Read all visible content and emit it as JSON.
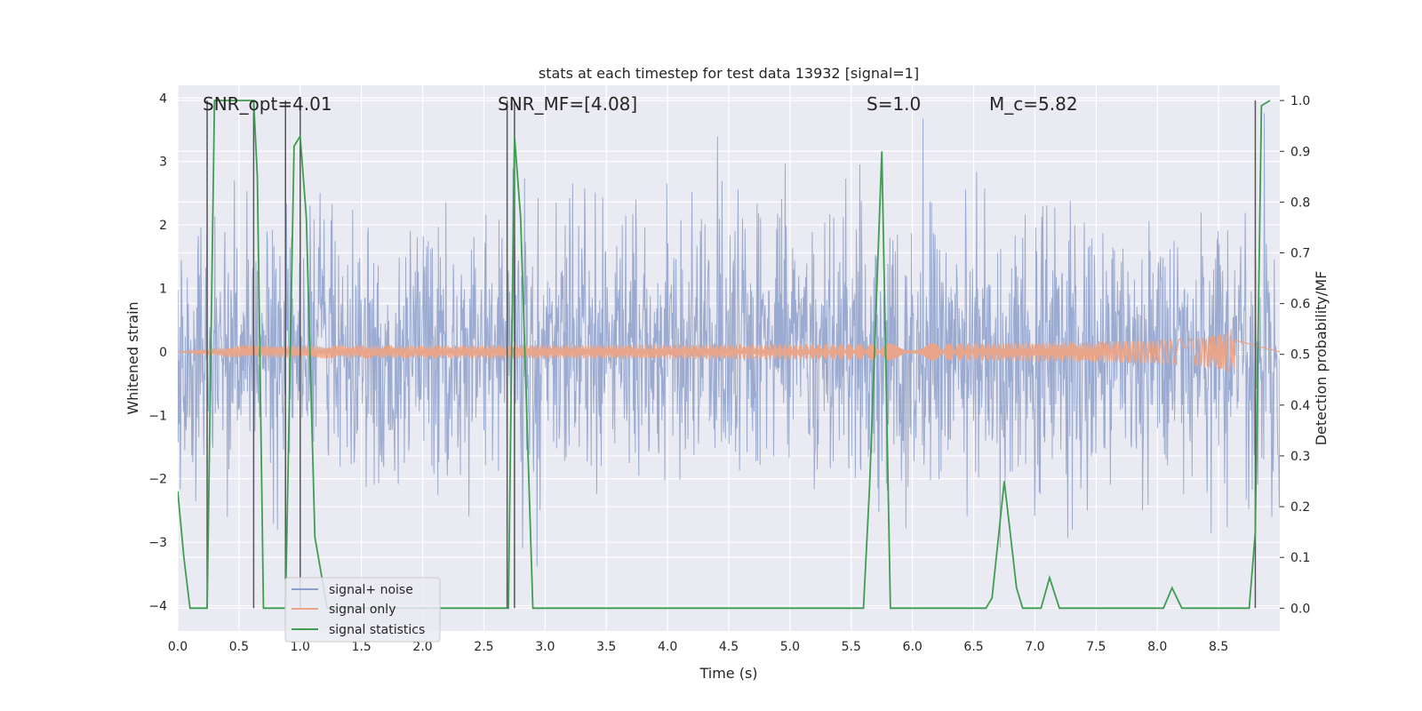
{
  "chart_data": {
    "type": "line",
    "title": "stats at each timestep for test data 13932 [signal=1]",
    "xlabel": "Time (s)",
    "ylabel_left": "Whitened strain",
    "ylabel_right": "Detection probability/MF",
    "xlim": [
      0,
      9.0
    ],
    "ylim_left": [
      -4.4,
      4.2
    ],
    "ylim_right": [
      -0.045,
      1.03
    ],
    "x_ticks": [
      "0.0",
      "0.5",
      "1.0",
      "1.5",
      "2.0",
      "2.5",
      "3.0",
      "3.5",
      "4.0",
      "4.5",
      "5.0",
      "5.5",
      "6.0",
      "6.5",
      "7.0",
      "7.5",
      "8.0",
      "8.5"
    ],
    "y_ticks_left": [
      "−4",
      "−3",
      "−2",
      "−1",
      "0",
      "1",
      "2",
      "3",
      "4"
    ],
    "y_ticks_right": [
      "0.0",
      "0.1",
      "0.2",
      "0.3",
      "0.4",
      "0.5",
      "0.6",
      "0.7",
      "0.8",
      "0.9",
      "1.0"
    ],
    "grid": true,
    "legend_position": "lower-left",
    "annotations": {
      "snr_opt": "SNR_opt=4.01",
      "snr_mf": "SNR_MF=[4.08]",
      "s": "S=1.0",
      "mc": "M_c=5.82"
    },
    "series": [
      {
        "name": "signal+ noise",
        "color": "#8c9fca",
        "description_values": "noisy whitened strain, approx. amplitude range -4 to 4"
      },
      {
        "name": "signal only",
        "color": "#e8a58a",
        "chirp_end_time": 8.65,
        "chirp_peak_amplitude": 0.45
      },
      {
        "name": "signal statistics",
        "color": "#3f9d52",
        "x": [
          0.0,
          0.05,
          0.1,
          0.24,
          0.3,
          0.62,
          0.65,
          0.7,
          0.8,
          0.88,
          0.95,
          1.0,
          1.05,
          1.12,
          1.22,
          2.6,
          2.7,
          2.75,
          2.8,
          2.9,
          4.0,
          5.6,
          5.65,
          5.75,
          5.82,
          6.6,
          6.65,
          6.75,
          6.85,
          6.9,
          7.05,
          7.12,
          7.2,
          8.05,
          8.12,
          8.2,
          8.75,
          8.8,
          8.85,
          8.92
        ],
        "y": [
          0.23,
          0.1,
          0.0,
          0.0,
          1.0,
          1.0,
          0.85,
          0.0,
          0.0,
          0.0,
          0.91,
          0.93,
          0.77,
          0.14,
          0.0,
          0.0,
          0.0,
          0.93,
          0.77,
          0.0,
          0.0,
          0.0,
          0.24,
          0.9,
          0.0,
          0.0,
          0.02,
          0.25,
          0.04,
          0.0,
          0.0,
          0.06,
          0.0,
          0.0,
          0.04,
          0.0,
          0.0,
          0.15,
          0.99,
          1.0
        ]
      }
    ],
    "vertical_markers_x": [
      0.24,
      0.62,
      0.88,
      1.0,
      2.69,
      2.75,
      8.8
    ]
  }
}
